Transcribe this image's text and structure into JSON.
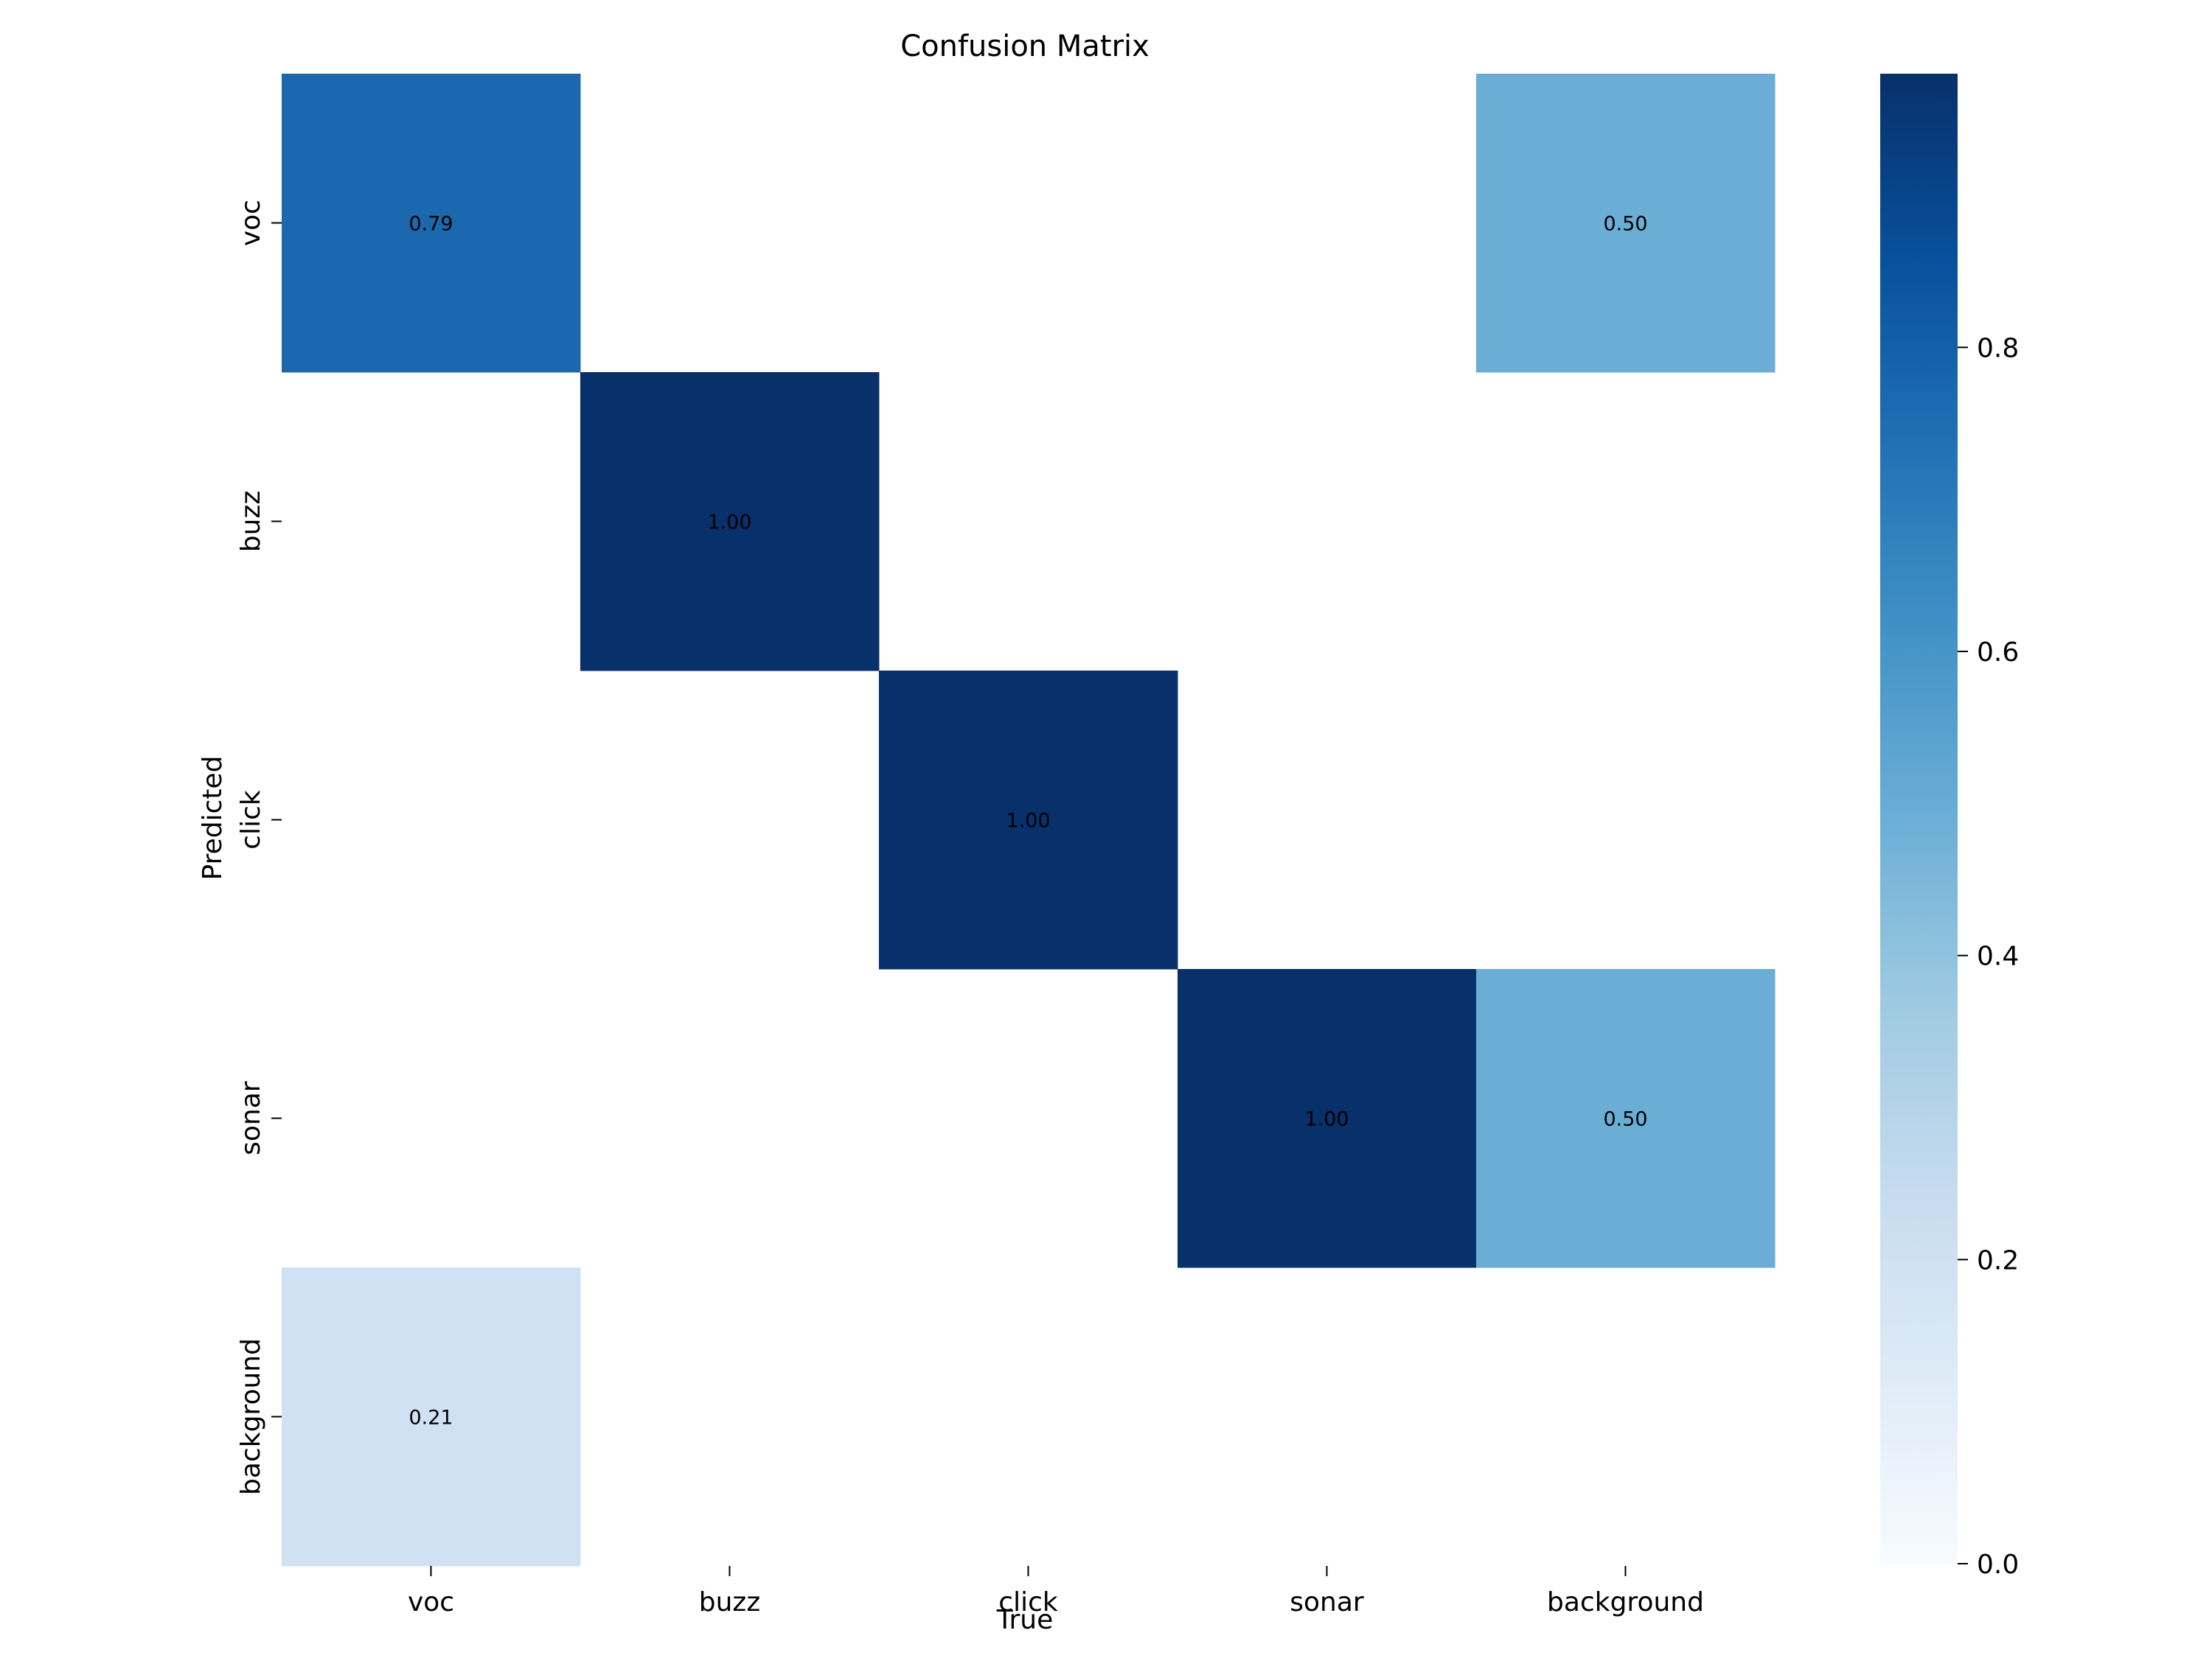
{
  "chart_data": {
    "type": "heatmap",
    "title": "Confusion Matrix",
    "xlabel": "True",
    "ylabel": "Predicted",
    "x_categories": [
      "voc",
      "buzz",
      "click",
      "sonar",
      "background"
    ],
    "y_categories": [
      "voc",
      "buzz",
      "click",
      "sonar",
      "background"
    ],
    "values": [
      [
        0.79,
        null,
        null,
        null,
        0.5
      ],
      [
        null,
        1.0,
        null,
        null,
        null
      ],
      [
        null,
        null,
        1.0,
        null,
        null
      ],
      [
        null,
        null,
        null,
        1.0,
        0.5
      ],
      [
        0.21,
        null,
        null,
        null,
        null
      ]
    ],
    "cell_labels": [
      [
        "0.79",
        "",
        "",
        "",
        "0.50"
      ],
      [
        "",
        "1.00",
        "",
        "",
        ""
      ],
      [
        "",
        "",
        "1.00",
        "",
        ""
      ],
      [
        "",
        "",
        "",
        "1.00",
        "0.50"
      ],
      [
        "0.21",
        "",
        "",
        "",
        ""
      ]
    ],
    "colormap": "Blues",
    "colorbar": {
      "range": [
        0,
        1
      ],
      "ticks": [
        0.0,
        0.2,
        0.4,
        0.6,
        0.8
      ],
      "tick_labels": [
        "0.0",
        "0.2",
        "0.4",
        "0.6",
        "0.8"
      ]
    },
    "colors": {
      "0.79": "#1c68ae",
      "1.00": "#08306b",
      "0.50": "#6aaed6",
      "0.21": "#cfe1f2"
    }
  }
}
